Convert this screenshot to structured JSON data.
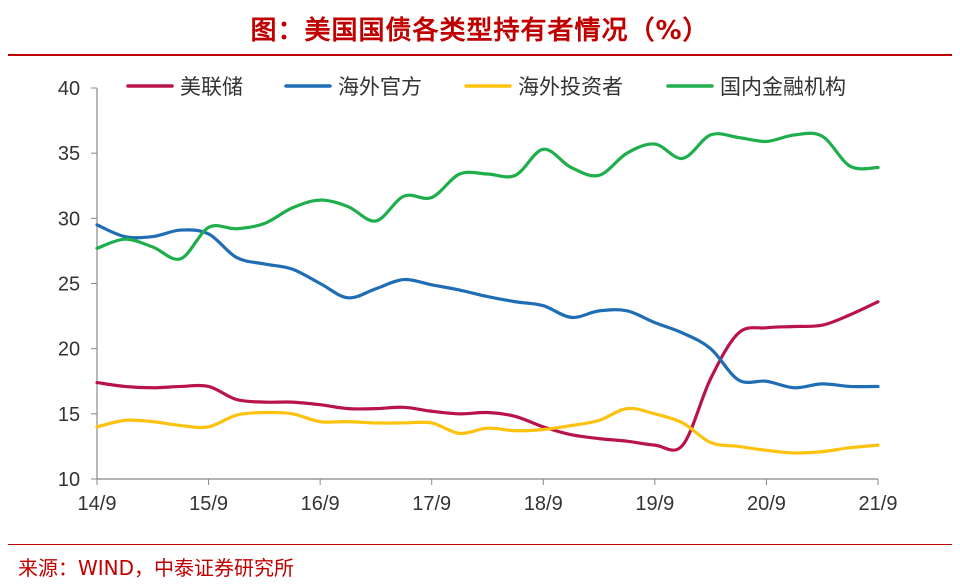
{
  "title": "图：美国国债各类型持有者情况（%）",
  "source": "来源：WIND，中泰证券研究所",
  "chart_data": {
    "type": "line",
    "title": "图：美国国债各类型持有者情况（%）",
    "xlabel": "",
    "ylabel": "",
    "x_ticks": [
      "14/9",
      "15/9",
      "16/9",
      "17/9",
      "18/9",
      "19/9",
      "20/9",
      "21/9"
    ],
    "ylim": [
      10,
      40
    ],
    "y_ticks": [
      10,
      15,
      20,
      25,
      30,
      35,
      40
    ],
    "grid": false,
    "legend_position": "top",
    "series": [
      {
        "name": "美联储",
        "color": "#b8144a",
        "values": [
          17.4,
          17.1,
          17.0,
          17.1,
          17.1,
          16.1,
          15.9,
          15.9,
          15.7,
          15.4,
          15.4,
          15.5,
          15.2,
          15.0,
          15.1,
          14.8,
          14.0,
          13.4,
          13.1,
          12.9,
          12.6,
          12.6,
          17.7,
          21.2,
          21.6,
          21.7,
          21.8,
          22.6,
          23.6
        ]
      },
      {
        "name": "海外官方",
        "color": "#1f6eb5",
        "values": [
          29.5,
          28.6,
          28.6,
          29.1,
          28.8,
          27.0,
          26.5,
          26.1,
          25.0,
          23.9,
          24.6,
          25.3,
          24.9,
          24.5,
          24.0,
          23.6,
          23.3,
          22.4,
          22.9,
          22.9,
          22.0,
          21.2,
          20.0,
          17.6,
          17.5,
          17.0,
          17.3,
          17.1,
          17.1
        ]
      },
      {
        "name": "海外投资者",
        "color": "#fcc20e",
        "values": [
          14.0,
          14.5,
          14.4,
          14.1,
          14.0,
          14.9,
          15.1,
          15.0,
          14.4,
          14.4,
          14.3,
          14.3,
          14.3,
          13.5,
          13.9,
          13.7,
          13.8,
          14.1,
          14.5,
          15.4,
          15.0,
          14.3,
          12.8,
          12.5,
          12.2,
          12.0,
          12.1,
          12.4,
          12.6
        ]
      },
      {
        "name": "国内金融机构",
        "color": "#1fae4c",
        "values": [
          27.7,
          28.4,
          27.8,
          26.9,
          29.3,
          29.2,
          29.6,
          30.8,
          31.4,
          30.9,
          29.8,
          31.7,
          31.6,
          33.4,
          33.4,
          33.3,
          35.3,
          33.9,
          33.3,
          35.0,
          35.7,
          34.6,
          36.4,
          36.2,
          35.9,
          36.4,
          36.3,
          34.0,
          33.9
        ]
      }
    ]
  }
}
